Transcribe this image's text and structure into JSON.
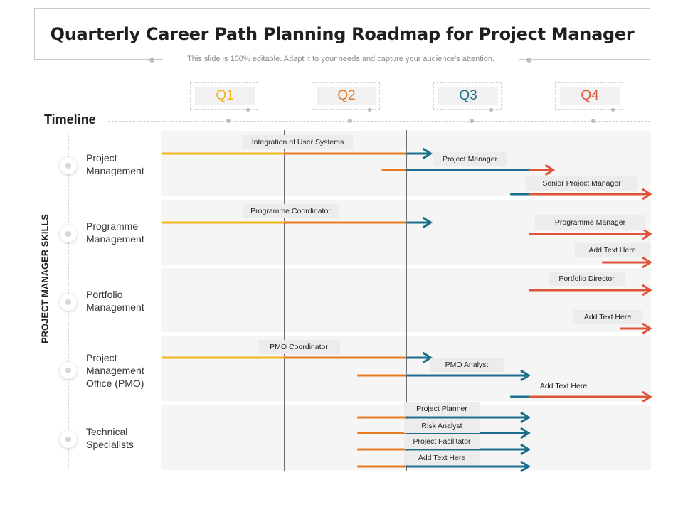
{
  "title": "Quarterly Career Path Planning Roadmap for Project Manager",
  "subtitle": "This slide is 100% editable. Adapt it to your needs and capture your audience's attention.",
  "timeline_label": "Timeline",
  "side_label": "PROJECT MANAGER SKILLS",
  "colors": {
    "q1": "#f2b21b",
    "q2": "#e67b22",
    "q3": "#1b6f8c",
    "q4": "#e0553a"
  },
  "quarters": [
    {
      "label": "Q1",
      "color": "#f2b21b"
    },
    {
      "label": "Q2",
      "color": "#e67b22"
    },
    {
      "label": "Q3",
      "color": "#1b6f8c"
    },
    {
      "label": "Q4",
      "color": "#e0553a"
    }
  ],
  "rows": [
    {
      "label": "Project Management",
      "bars": [
        {
          "tag": "Integration of User Systems",
          "start": 0,
          "end": 2.2,
          "arrow": "q3"
        },
        {
          "tag": "Project Manager",
          "start": 1.8,
          "end": 3.2,
          "arrow": "q4"
        },
        {
          "tag": "Senior Project Manager",
          "start": 2.85,
          "end": 4,
          "arrow": "q4"
        }
      ]
    },
    {
      "label": "Programme Management",
      "bars": [
        {
          "tag": "Programme  Coordinator",
          "start": 0,
          "end": 2.2,
          "arrow": "q3"
        },
        {
          "tag": "Programme  Manager",
          "start": 3,
          "end": 4,
          "arrow": "q4"
        },
        {
          "tag": "Add Text Here",
          "start": 3.6,
          "end": 4,
          "arrow": "q4"
        }
      ]
    },
    {
      "label": "Portfolio Management",
      "bars": [
        {
          "tag": "Portfolio Director",
          "start": 3,
          "end": 4,
          "arrow": "q4"
        },
        {
          "tag": "Add Text Here",
          "start": 3.75,
          "end": 4,
          "arrow": "q4"
        }
      ]
    },
    {
      "label": "Project Management Office (PMO)",
      "bars": [
        {
          "tag": "PMO  Coordinator",
          "start": 0,
          "end": 2.2,
          "arrow": "q3"
        },
        {
          "tag": "PMO  Analyst",
          "start": 1.6,
          "end": 3,
          "arrow": "q3"
        },
        {
          "tag": "Add Text Here",
          "start": 2.85,
          "end": 4,
          "arrow": "q4"
        }
      ]
    },
    {
      "label": "Technical Specialists",
      "bars": [
        {
          "tag": "Project Planner",
          "start": 1.6,
          "end": 3,
          "arrow": "q3"
        },
        {
          "tag": "Risk Analyst",
          "start": 1.6,
          "end": 3,
          "arrow": "q3"
        },
        {
          "tag": "Project Facilitator",
          "start": 1.6,
          "end": 3,
          "arrow": "q3"
        },
        {
          "tag": "Add Text Here",
          "start": 1.6,
          "end": 3,
          "arrow": "q3"
        }
      ]
    }
  ]
}
